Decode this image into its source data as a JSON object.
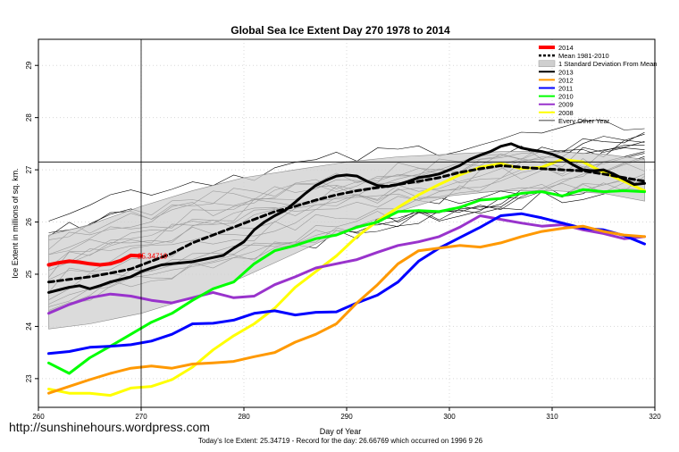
{
  "watermark": "http://sunshinehours.wordpress.com",
  "chart_data": {
    "type": "line",
    "title": "Global Sea Ice Extent Day 270 1978 to 2014",
    "xlabel": "Day of Year",
    "ylabel": "Ice Extent in millions of sq. km.",
    "footer": "Today's Ice Extent: 25.34719  -  Record for the day: 26.66769 which occurred on 1996 9 26",
    "xlim": [
      260,
      320
    ],
    "ylim": [
      22.45,
      29.5
    ],
    "xticks": [
      260,
      270,
      280,
      290,
      300,
      310,
      320
    ],
    "yticks": [
      23,
      24,
      25,
      26,
      27,
      28,
      29
    ],
    "grid": true,
    "vline_x": 270,
    "hline_y": 27.15,
    "current_value_label": "25.34719",
    "legend_position": "top-right",
    "legend": [
      {
        "label": "2014",
        "color": "#ff0000",
        "style": "thick"
      },
      {
        "label": "Mean 1981-2010",
        "color": "#000000",
        "style": "dashed"
      },
      {
        "label": "1 Standard Deviation From Mean",
        "color": "#cccccc",
        "style": "box"
      },
      {
        "label": "2013",
        "color": "#000000",
        "style": "line"
      },
      {
        "label": "2012",
        "color": "#ff9900",
        "style": "line"
      },
      {
        "label": "2011",
        "color": "#0000ff",
        "style": "line"
      },
      {
        "label": "2010",
        "color": "#00ff00",
        "style": "line"
      },
      {
        "label": "2009",
        "color": "#9933cc",
        "style": "line"
      },
      {
        "label": "2008",
        "color": "#ffff00",
        "style": "line"
      },
      {
        "label": "Every Other Year",
        "color": "#000000",
        "style": "thin"
      }
    ],
    "band": {
      "x": [
        261,
        265,
        270,
        275,
        280,
        285,
        290,
        295,
        300,
        305,
        310,
        315,
        319
      ],
      "upper": [
        25.75,
        25.95,
        26.3,
        26.6,
        26.85,
        27.0,
        27.15,
        27.25,
        27.3,
        27.35,
        27.35,
        27.3,
        27.2
      ],
      "lower": [
        23.95,
        24.05,
        24.25,
        24.55,
        24.95,
        25.4,
        25.85,
        26.2,
        26.5,
        26.6,
        26.6,
        26.55,
        26.4
      ]
    },
    "series": [
      {
        "name": "2014",
        "color": "#ff0000",
        "width": 4,
        "x": [
          261,
          262,
          263,
          264,
          265,
          266,
          267,
          268,
          269,
          270
        ],
        "values": [
          25.18,
          25.22,
          25.25,
          25.23,
          25.2,
          25.18,
          25.2,
          25.26,
          25.36,
          25.35
        ]
      },
      {
        "name": "Mean 1981-2010",
        "color": "#000000",
        "width": 3,
        "dash": "6,4",
        "x": [
          261,
          263,
          265,
          267,
          269,
          271,
          273,
          275,
          277,
          279,
          281,
          283,
          285,
          287,
          289,
          291,
          293,
          295,
          297,
          299,
          301,
          303,
          305,
          307,
          309,
          311,
          313,
          315,
          317,
          319
        ],
        "values": [
          24.85,
          24.9,
          24.95,
          25.02,
          25.1,
          25.25,
          25.4,
          25.6,
          25.75,
          25.9,
          26.05,
          26.2,
          26.3,
          26.42,
          26.52,
          26.6,
          26.66,
          26.72,
          26.78,
          26.85,
          26.95,
          27.02,
          27.08,
          27.05,
          27.02,
          27.0,
          26.98,
          26.92,
          26.85,
          26.78
        ]
      },
      {
        "name": "2013",
        "color": "#000000",
        "width": 3,
        "x": [
          261,
          262,
          263,
          264,
          265,
          266,
          267,
          268,
          269,
          270,
          271,
          272,
          273,
          274,
          275,
          276,
          277,
          278,
          279,
          280,
          281,
          282,
          283,
          284,
          285,
          286,
          287,
          288,
          289,
          290,
          291,
          292,
          293,
          294,
          295,
          296,
          297,
          298,
          299,
          300,
          301,
          302,
          303,
          304,
          305,
          306,
          307,
          308,
          309,
          310,
          311,
          312,
          313,
          314,
          315,
          316,
          317,
          318,
          319
        ],
        "values": [
          24.65,
          24.7,
          24.75,
          24.78,
          24.72,
          24.78,
          24.85,
          24.9,
          24.95,
          25.05,
          25.12,
          25.18,
          25.2,
          25.22,
          25.24,
          25.28,
          25.32,
          25.36,
          25.5,
          25.62,
          25.85,
          26.0,
          26.12,
          26.22,
          26.38,
          26.55,
          26.7,
          26.8,
          26.88,
          26.9,
          26.88,
          26.78,
          26.7,
          26.68,
          26.72,
          26.78,
          26.85,
          26.88,
          26.92,
          27.0,
          27.08,
          27.2,
          27.28,
          27.35,
          27.45,
          27.5,
          27.42,
          27.38,
          27.35,
          27.3,
          27.22,
          27.1,
          27.0,
          26.98,
          27.0,
          26.92,
          26.82,
          26.72,
          26.74
        ]
      },
      {
        "name": "2012",
        "color": "#ff9900",
        "width": 3,
        "x": [
          261,
          263,
          265,
          267,
          269,
          271,
          273,
          275,
          277,
          279,
          281,
          283,
          285,
          287,
          289,
          291,
          293,
          295,
          297,
          299,
          301,
          303,
          305,
          307,
          309,
          311,
          313,
          315,
          317,
          319
        ],
        "values": [
          22.72,
          22.85,
          22.98,
          23.1,
          23.2,
          23.24,
          23.2,
          23.28,
          23.3,
          23.33,
          23.42,
          23.5,
          23.7,
          23.85,
          24.05,
          24.45,
          24.8,
          25.2,
          25.45,
          25.5,
          25.55,
          25.52,
          25.6,
          25.72,
          25.82,
          25.88,
          25.92,
          25.82,
          25.75,
          25.72
        ]
      },
      {
        "name": "2011",
        "color": "#0000ff",
        "width": 3,
        "x": [
          261,
          263,
          265,
          267,
          269,
          271,
          273,
          275,
          277,
          279,
          281,
          283,
          285,
          287,
          289,
          291,
          293,
          295,
          297,
          299,
          301,
          303,
          305,
          307,
          309,
          311,
          313,
          315,
          317,
          319
        ],
        "values": [
          23.48,
          23.52,
          23.6,
          23.62,
          23.65,
          23.72,
          23.85,
          24.05,
          24.06,
          24.12,
          24.25,
          24.3,
          24.22,
          24.27,
          24.28,
          24.45,
          24.6,
          24.85,
          25.25,
          25.5,
          25.7,
          25.9,
          26.12,
          26.16,
          26.08,
          25.98,
          25.88,
          25.85,
          25.74,
          25.58
        ]
      },
      {
        "name": "2010",
        "color": "#00ff00",
        "width": 3,
        "x": [
          261,
          263,
          265,
          267,
          269,
          271,
          273,
          275,
          277,
          279,
          281,
          283,
          285,
          287,
          289,
          291,
          293,
          295,
          297,
          299,
          301,
          303,
          305,
          307,
          309,
          311,
          313,
          315,
          317,
          319
        ],
        "values": [
          23.3,
          23.1,
          23.4,
          23.62,
          23.85,
          24.08,
          24.25,
          24.5,
          24.72,
          24.85,
          25.2,
          25.45,
          25.55,
          25.68,
          25.75,
          25.9,
          26.0,
          26.2,
          26.22,
          26.2,
          26.28,
          26.42,
          26.45,
          26.55,
          26.58,
          26.5,
          26.62,
          26.58,
          26.6,
          26.58
        ]
      },
      {
        "name": "2009",
        "color": "#9933cc",
        "width": 3,
        "x": [
          261,
          263,
          265,
          267,
          269,
          271,
          273,
          275,
          277,
          279,
          281,
          283,
          285,
          287,
          289,
          291,
          293,
          295,
          297,
          299,
          301,
          303,
          305,
          307,
          309,
          311,
          313,
          315,
          317,
          319
        ],
        "values": [
          24.25,
          24.42,
          24.55,
          24.62,
          24.58,
          24.5,
          24.45,
          24.55,
          24.65,
          24.55,
          24.58,
          24.8,
          24.95,
          25.12,
          25.2,
          25.28,
          25.42,
          25.55,
          25.62,
          25.72,
          25.9,
          26.12,
          26.05,
          25.98,
          25.92,
          25.95,
          25.85,
          25.78,
          25.68,
          25.72
        ]
      },
      {
        "name": "2008",
        "color": "#ffff00",
        "width": 3,
        "x": [
          261,
          263,
          265,
          267,
          269,
          271,
          273,
          275,
          277,
          279,
          281,
          283,
          285,
          287,
          289,
          291,
          293,
          295,
          297,
          299,
          301,
          303,
          305,
          307,
          309,
          311,
          313,
          315,
          317,
          319
        ],
        "values": [
          22.8,
          22.72,
          22.72,
          22.68,
          22.82,
          22.85,
          22.98,
          23.22,
          23.55,
          23.82,
          24.05,
          24.35,
          24.75,
          25.05,
          25.35,
          25.72,
          26.02,
          26.28,
          26.52,
          26.72,
          26.9,
          27.05,
          27.12,
          27.02,
          27.05,
          27.2,
          27.15,
          26.95,
          26.78,
          26.6
        ]
      }
    ]
  }
}
